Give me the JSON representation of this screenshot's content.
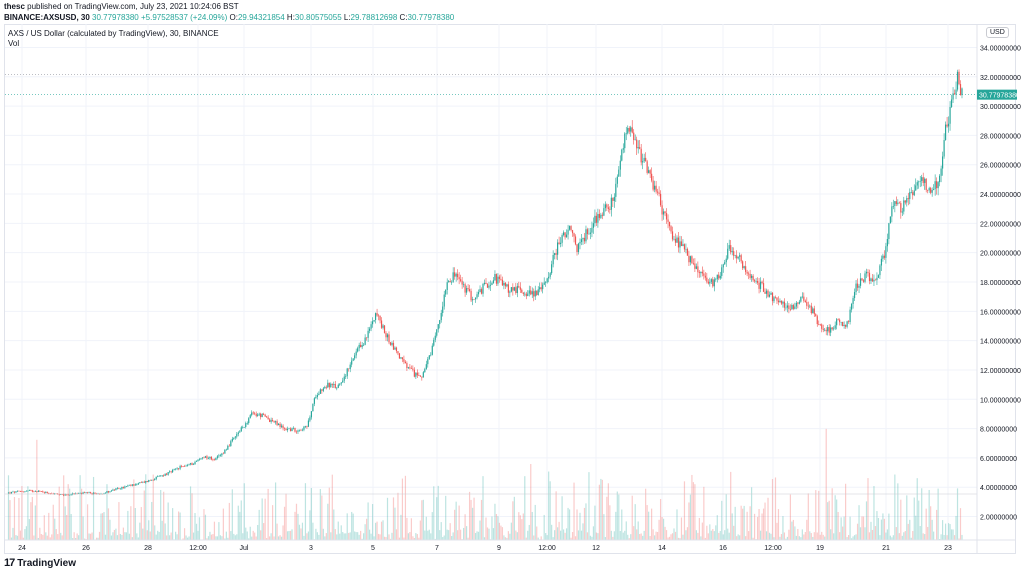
{
  "header": {
    "publisher": "thesc",
    "published_text": "published on TradingView.com, July 23, 2021 10:24:06 BST",
    "symbol": "BINANCE:AXSUSD, 30",
    "last_price": "30.77978380",
    "change": "+5.97528537 (+24.09%)",
    "o_label": "O:",
    "o_value": "29.94321854",
    "h_label": "H:",
    "h_value": "30.80575055",
    "l_label": "L:",
    "l_value": "29.78812698",
    "c_label": "C:",
    "c_value": "30.77978380"
  },
  "legend": {
    "title": "AXS / US Dollar (calculated by TradingView), 30, BINANCE",
    "vol_label": "Vol"
  },
  "currency_badge": "USD",
  "price_label": "30.77978380",
  "footer": {
    "brand": "TradingView"
  },
  "colors": {
    "up": "#26a69a",
    "down": "#ef5350",
    "grid": "#f0f3fa",
    "price_line": "#26a69a"
  },
  "chart_data": {
    "type": "candlestick",
    "title": "AXS / US Dollar (calculated by TradingView), 30, BINANCE",
    "interval": "30",
    "y_axis": {
      "ticks": [
        "2.00000000",
        "4.00000000",
        "6.00000000",
        "8.00000000",
        "10.00000000",
        "12.00000000",
        "14.00000000",
        "16.00000000",
        "18.00000000",
        "20.00000000",
        "22.00000000",
        "24.00000000",
        "26.00000000",
        "28.00000000",
        "30.00000000",
        "32.00000000",
        "34.00000000"
      ],
      "range": [
        0.4,
        35.6
      ],
      "side": "right",
      "dotted_level": 32.15
    },
    "x_axis": {
      "ticks": [
        "24",
        "26",
        "28",
        "12:00",
        "Jul",
        "3",
        "5",
        "7",
        "9",
        "12:00",
        "12",
        "14",
        "16",
        "12:00",
        "19",
        "21",
        "23"
      ],
      "range": [
        23.9,
        53.55
      ]
    },
    "price_path": [
      [
        23.9,
        3.6
      ],
      [
        24.5,
        3.72
      ],
      [
        25.2,
        3.75
      ],
      [
        25.8,
        3.6
      ],
      [
        26.3,
        3.45
      ],
      [
        26.8,
        3.55
      ],
      [
        27.4,
        3.6
      ],
      [
        28.0,
        3.55
      ],
      [
        28.4,
        3.75
      ],
      [
        29.0,
        4.0
      ],
      [
        29.5,
        4.2
      ],
      [
        30.0,
        4.4
      ],
      [
        30.5,
        4.7
      ],
      [
        31.0,
        5.0
      ],
      [
        31.5,
        5.4
      ],
      [
        32.0,
        5.6
      ],
      [
        32.5,
        6.1
      ],
      [
        33.0,
        5.9
      ],
      [
        33.3,
        6.3
      ],
      [
        33.8,
        7.3
      ],
      [
        34.3,
        8.3
      ],
      [
        34.6,
        9.0
      ],
      [
        35.0,
        8.9
      ],
      [
        35.5,
        8.5
      ],
      [
        36.0,
        8.0
      ],
      [
        36.5,
        7.9
      ],
      [
        37.0,
        8.1
      ],
      [
        37.4,
        10.4
      ],
      [
        37.9,
        11.0
      ],
      [
        38.3,
        10.8
      ],
      [
        38.8,
        12.0
      ],
      [
        39.2,
        13.3
      ],
      [
        39.6,
        14.2
      ],
      [
        40.0,
        16.0
      ],
      [
        40.4,
        14.5
      ],
      [
        40.8,
        13.5
      ],
      [
        41.3,
        12.3
      ],
      [
        41.7,
        11.7
      ],
      [
        42.0,
        11.6
      ],
      [
        42.4,
        13.0
      ],
      [
        42.8,
        15.5
      ],
      [
        43.1,
        18.1
      ],
      [
        43.5,
        18.5
      ],
      [
        43.9,
        17.5
      ],
      [
        44.3,
        16.8
      ],
      [
        44.8,
        17.8
      ],
      [
        45.2,
        18.3
      ],
      [
        45.8,
        17.5
      ],
      [
        46.2,
        17.5
      ],
      [
        46.8,
        17.2
      ],
      [
        47.3,
        17.6
      ],
      [
        47.6,
        18.8
      ],
      [
        48.0,
        20.8
      ],
      [
        48.5,
        21.5
      ],
      [
        48.8,
        20.3
      ],
      [
        49.2,
        21.3
      ],
      [
        49.6,
        22.3
      ],
      [
        50.0,
        23.0
      ],
      [
        50.4,
        23.5
      ],
      [
        50.7,
        26.4
      ],
      [
        51.0,
        28.7
      ],
      [
        51.3,
        27.4
      ],
      [
        51.6,
        26.5
      ],
      [
        52.0,
        25.0
      ],
      [
        52.3,
        24.0
      ],
      [
        52.6,
        22.5
      ],
      [
        53.0,
        21.0
      ]
    ],
    "price_path_2": [
      [
        53.0,
        21.0
      ],
      [
        53.4,
        20.3
      ],
      [
        53.8,
        19.3
      ],
      [
        54.2,
        18.6
      ],
      [
        54.6,
        17.8
      ],
      [
        55.0,
        18.5
      ],
      [
        55.4,
        20.3
      ],
      [
        55.8,
        19.8
      ],
      [
        56.2,
        18.5
      ],
      [
        56.6,
        18.0
      ],
      [
        57.0,
        17.5
      ],
      [
        57.4,
        16.8
      ],
      [
        57.8,
        16.4
      ],
      [
        58.2,
        16.3
      ],
      [
        58.6,
        17.0
      ],
      [
        59.0,
        16.2
      ],
      [
        59.4,
        15.0
      ],
      [
        59.8,
        14.8
      ],
      [
        60.2,
        15.3
      ],
      [
        60.6,
        15.1
      ],
      [
        61.0,
        17.8
      ],
      [
        61.4,
        18.4
      ],
      [
        61.8,
        18.1
      ],
      [
        62.2,
        19.8
      ],
      [
        62.6,
        23.5
      ],
      [
        63.0,
        23.0
      ],
      [
        63.4,
        24.2
      ],
      [
        63.8,
        25.2
      ],
      [
        64.2,
        24.3
      ],
      [
        64.6,
        24.8
      ],
      [
        64.9,
        28.5
      ],
      [
        65.2,
        30.5
      ],
      [
        65.4,
        32.1
      ],
      [
        65.6,
        30.78
      ]
    ],
    "volume_max_fraction": 0.3
  }
}
